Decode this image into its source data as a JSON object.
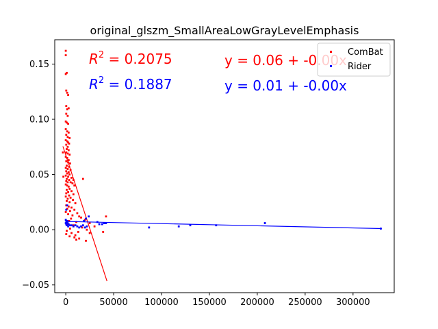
{
  "chart_data": {
    "type": "scatter",
    "title": "original_glszm_SmallAreaLowGrayLevelEmphasis",
    "xlabel": "",
    "ylabel": "",
    "xlim": [
      -11500,
      343000
    ],
    "ylim": [
      -0.057,
      0.172
    ],
    "x_ticks": [
      {
        "value": 0,
        "label": "0"
      },
      {
        "value": 50000,
        "label": "50000"
      },
      {
        "value": 100000,
        "label": "100000"
      },
      {
        "value": 150000,
        "label": "150000"
      },
      {
        "value": 200000,
        "label": "200000"
      },
      {
        "value": 250000,
        "label": "250000"
      },
      {
        "value": 300000,
        "label": "300000"
      }
    ],
    "y_ticks": [
      {
        "value": -0.05,
        "label": "−0.05"
      },
      {
        "value": 0.0,
        "label": "0.00"
      },
      {
        "value": 0.05,
        "label": "0.05"
      },
      {
        "value": 0.1,
        "label": "0.10"
      },
      {
        "value": 0.15,
        "label": "0.15"
      }
    ],
    "legend": {
      "placement": "top-right",
      "entries": [
        "ComBat",
        "Rider"
      ]
    },
    "grid": false,
    "annotations": {
      "combat_r2_prefix": "R",
      "combat_r2_sup": "2",
      "combat_r2_value": " = 0.2075",
      "rider_r2_prefix": "R",
      "rider_r2_sup": "2",
      "rider_r2_value": " = 0.1887",
      "combat_eq": "y = 0.06 + -0.00x",
      "rider_eq": "y = 0.01 + -0.00x"
    },
    "series": [
      {
        "name": "ComBat",
        "color": "#ff0000",
        "fit": {
          "x": [
            -3000,
            43000
          ],
          "y": [
            0.0755,
            -0.0465
          ]
        },
        "points": [
          [
            0,
            0.162
          ],
          [
            0,
            0.158
          ],
          [
            0,
            0.141
          ],
          [
            1000,
            0.142
          ],
          [
            500,
            0.126
          ],
          [
            1500,
            0.124
          ],
          [
            2500,
            0.122
          ],
          [
            500,
            0.112
          ],
          [
            1500,
            0.109
          ],
          [
            500,
            0.105
          ],
          [
            2000,
            0.103
          ],
          [
            3000,
            0.11
          ],
          [
            0,
            0.098
          ],
          [
            1000,
            0.097
          ],
          [
            2500,
            0.096
          ],
          [
            0,
            0.091
          ],
          [
            1500,
            0.089
          ],
          [
            3000,
            0.088
          ],
          [
            500,
            0.086
          ],
          [
            2000,
            0.084
          ],
          [
            4000,
            0.083
          ],
          [
            0,
            0.081
          ],
          [
            1500,
            0.08
          ],
          [
            2500,
            0.079
          ],
          [
            3500,
            0.078
          ],
          [
            500,
            0.077
          ],
          [
            2000,
            0.075
          ],
          [
            1000,
            0.073
          ],
          [
            3000,
            0.072
          ],
          [
            500,
            0.07
          ],
          [
            2000,
            0.069
          ],
          [
            4000,
            0.068
          ],
          [
            0,
            0.066
          ],
          [
            1500,
            0.065
          ],
          [
            3000,
            0.063
          ],
          [
            500,
            0.062
          ],
          [
            2500,
            0.061
          ],
          [
            4500,
            0.06
          ],
          [
            1000,
            0.058
          ],
          [
            3500,
            0.057
          ],
          [
            0,
            0.056
          ],
          [
            2000,
            0.055
          ],
          [
            5000,
            0.054
          ],
          [
            500,
            0.053
          ],
          [
            3000,
            0.052
          ],
          [
            1500,
            0.051
          ],
          [
            4000,
            0.05
          ],
          [
            0,
            0.049
          ],
          [
            2500,
            0.048
          ],
          [
            6000,
            0.047
          ],
          [
            -2500,
            0.048
          ],
          [
            1000,
            0.046
          ],
          [
            3500,
            0.045
          ],
          [
            8000,
            0.045
          ],
          [
            500,
            0.044
          ],
          [
            2000,
            0.043
          ],
          [
            5000,
            0.043
          ],
          [
            7000,
            0.042
          ],
          [
            0,
            0.041
          ],
          [
            1500,
            0.04
          ],
          [
            3000,
            0.039
          ],
          [
            9000,
            0.04
          ],
          [
            4000,
            0.037
          ],
          [
            1000,
            0.036
          ],
          [
            6000,
            0.035
          ],
          [
            2500,
            0.034
          ],
          [
            500,
            0.033
          ],
          [
            8000,
            0.032
          ],
          [
            3500,
            0.031
          ],
          [
            0,
            0.03
          ],
          [
            5000,
            0.029
          ],
          [
            2000,
            0.028
          ],
          [
            7500,
            0.027
          ],
          [
            1000,
            0.026
          ],
          [
            4000,
            0.025
          ],
          [
            10000,
            0.024
          ],
          [
            500,
            0.022
          ],
          [
            3000,
            0.021
          ],
          [
            6000,
            0.02
          ],
          [
            18000,
            0.046
          ],
          [
            1500,
            0.019
          ],
          [
            9000,
            0.018
          ],
          [
            4500,
            0.017
          ],
          [
            0,
            0.016
          ],
          [
            12000,
            0.015
          ],
          [
            2500,
            0.014
          ],
          [
            7000,
            0.013
          ],
          [
            14000,
            0.012
          ],
          [
            42000,
            0.012
          ],
          [
            16000,
            0.011
          ],
          [
            5500,
            0.01
          ],
          [
            20000,
            0.009
          ],
          [
            3500,
            0.008
          ],
          [
            11000,
            0.007
          ],
          [
            25000,
            0.006
          ],
          [
            1500,
            0.005
          ],
          [
            8000,
            0.004
          ],
          [
            30000,
            0.003
          ],
          [
            17000,
            0.002
          ],
          [
            4500,
            0.001
          ],
          [
            22000,
            0.0
          ],
          [
            1000,
            -0.001
          ],
          [
            13000,
            -0.002
          ],
          [
            39000,
            -0.002
          ],
          [
            6000,
            -0.003
          ],
          [
            25000,
            -0.003
          ],
          [
            500,
            -0.004
          ],
          [
            10000,
            -0.005
          ],
          [
            4000,
            -0.006
          ],
          [
            9000,
            -0.007
          ],
          [
            14000,
            -0.008
          ],
          [
            11000,
            -0.009
          ],
          [
            21000,
            -0.01
          ],
          [
            -3000,
            0.07
          ]
        ]
      },
      {
        "name": "Rider",
        "color": "#0000ff",
        "fit": {
          "x": [
            0,
            330000
          ],
          "y": [
            0.0075,
            0.001
          ]
        },
        "points": [
          [
            0,
            0.009
          ],
          [
            500,
            0.008
          ],
          [
            1000,
            0.007
          ],
          [
            1500,
            0.008
          ],
          [
            0,
            0.006
          ],
          [
            2000,
            0.006
          ],
          [
            500,
            0.005
          ],
          [
            3000,
            0.005
          ],
          [
            1000,
            0.004
          ],
          [
            4000,
            0.004
          ],
          [
            2500,
            0.003
          ],
          [
            6000,
            0.004
          ],
          [
            8000,
            0.003
          ],
          [
            10000,
            0.004
          ],
          [
            12000,
            0.003
          ],
          [
            14000,
            0.002
          ],
          [
            16000,
            0.003
          ],
          [
            18000,
            0.004
          ],
          [
            20000,
            0.002
          ],
          [
            22000,
            0.003
          ],
          [
            19000,
            0.008
          ],
          [
            24000,
            0.012
          ],
          [
            21000,
            0.01
          ],
          [
            33000,
            0.007
          ],
          [
            35000,
            0.005
          ],
          [
            38000,
            0.005
          ],
          [
            40000,
            0.006
          ],
          [
            42000,
            0.006
          ],
          [
            1500,
            0.022
          ],
          [
            500,
            0.018
          ],
          [
            87000,
            0.002
          ],
          [
            118000,
            0.003
          ],
          [
            130000,
            0.004
          ],
          [
            157000,
            0.004
          ],
          [
            208000,
            0.006
          ],
          [
            329000,
            0.001
          ]
        ]
      }
    ]
  }
}
